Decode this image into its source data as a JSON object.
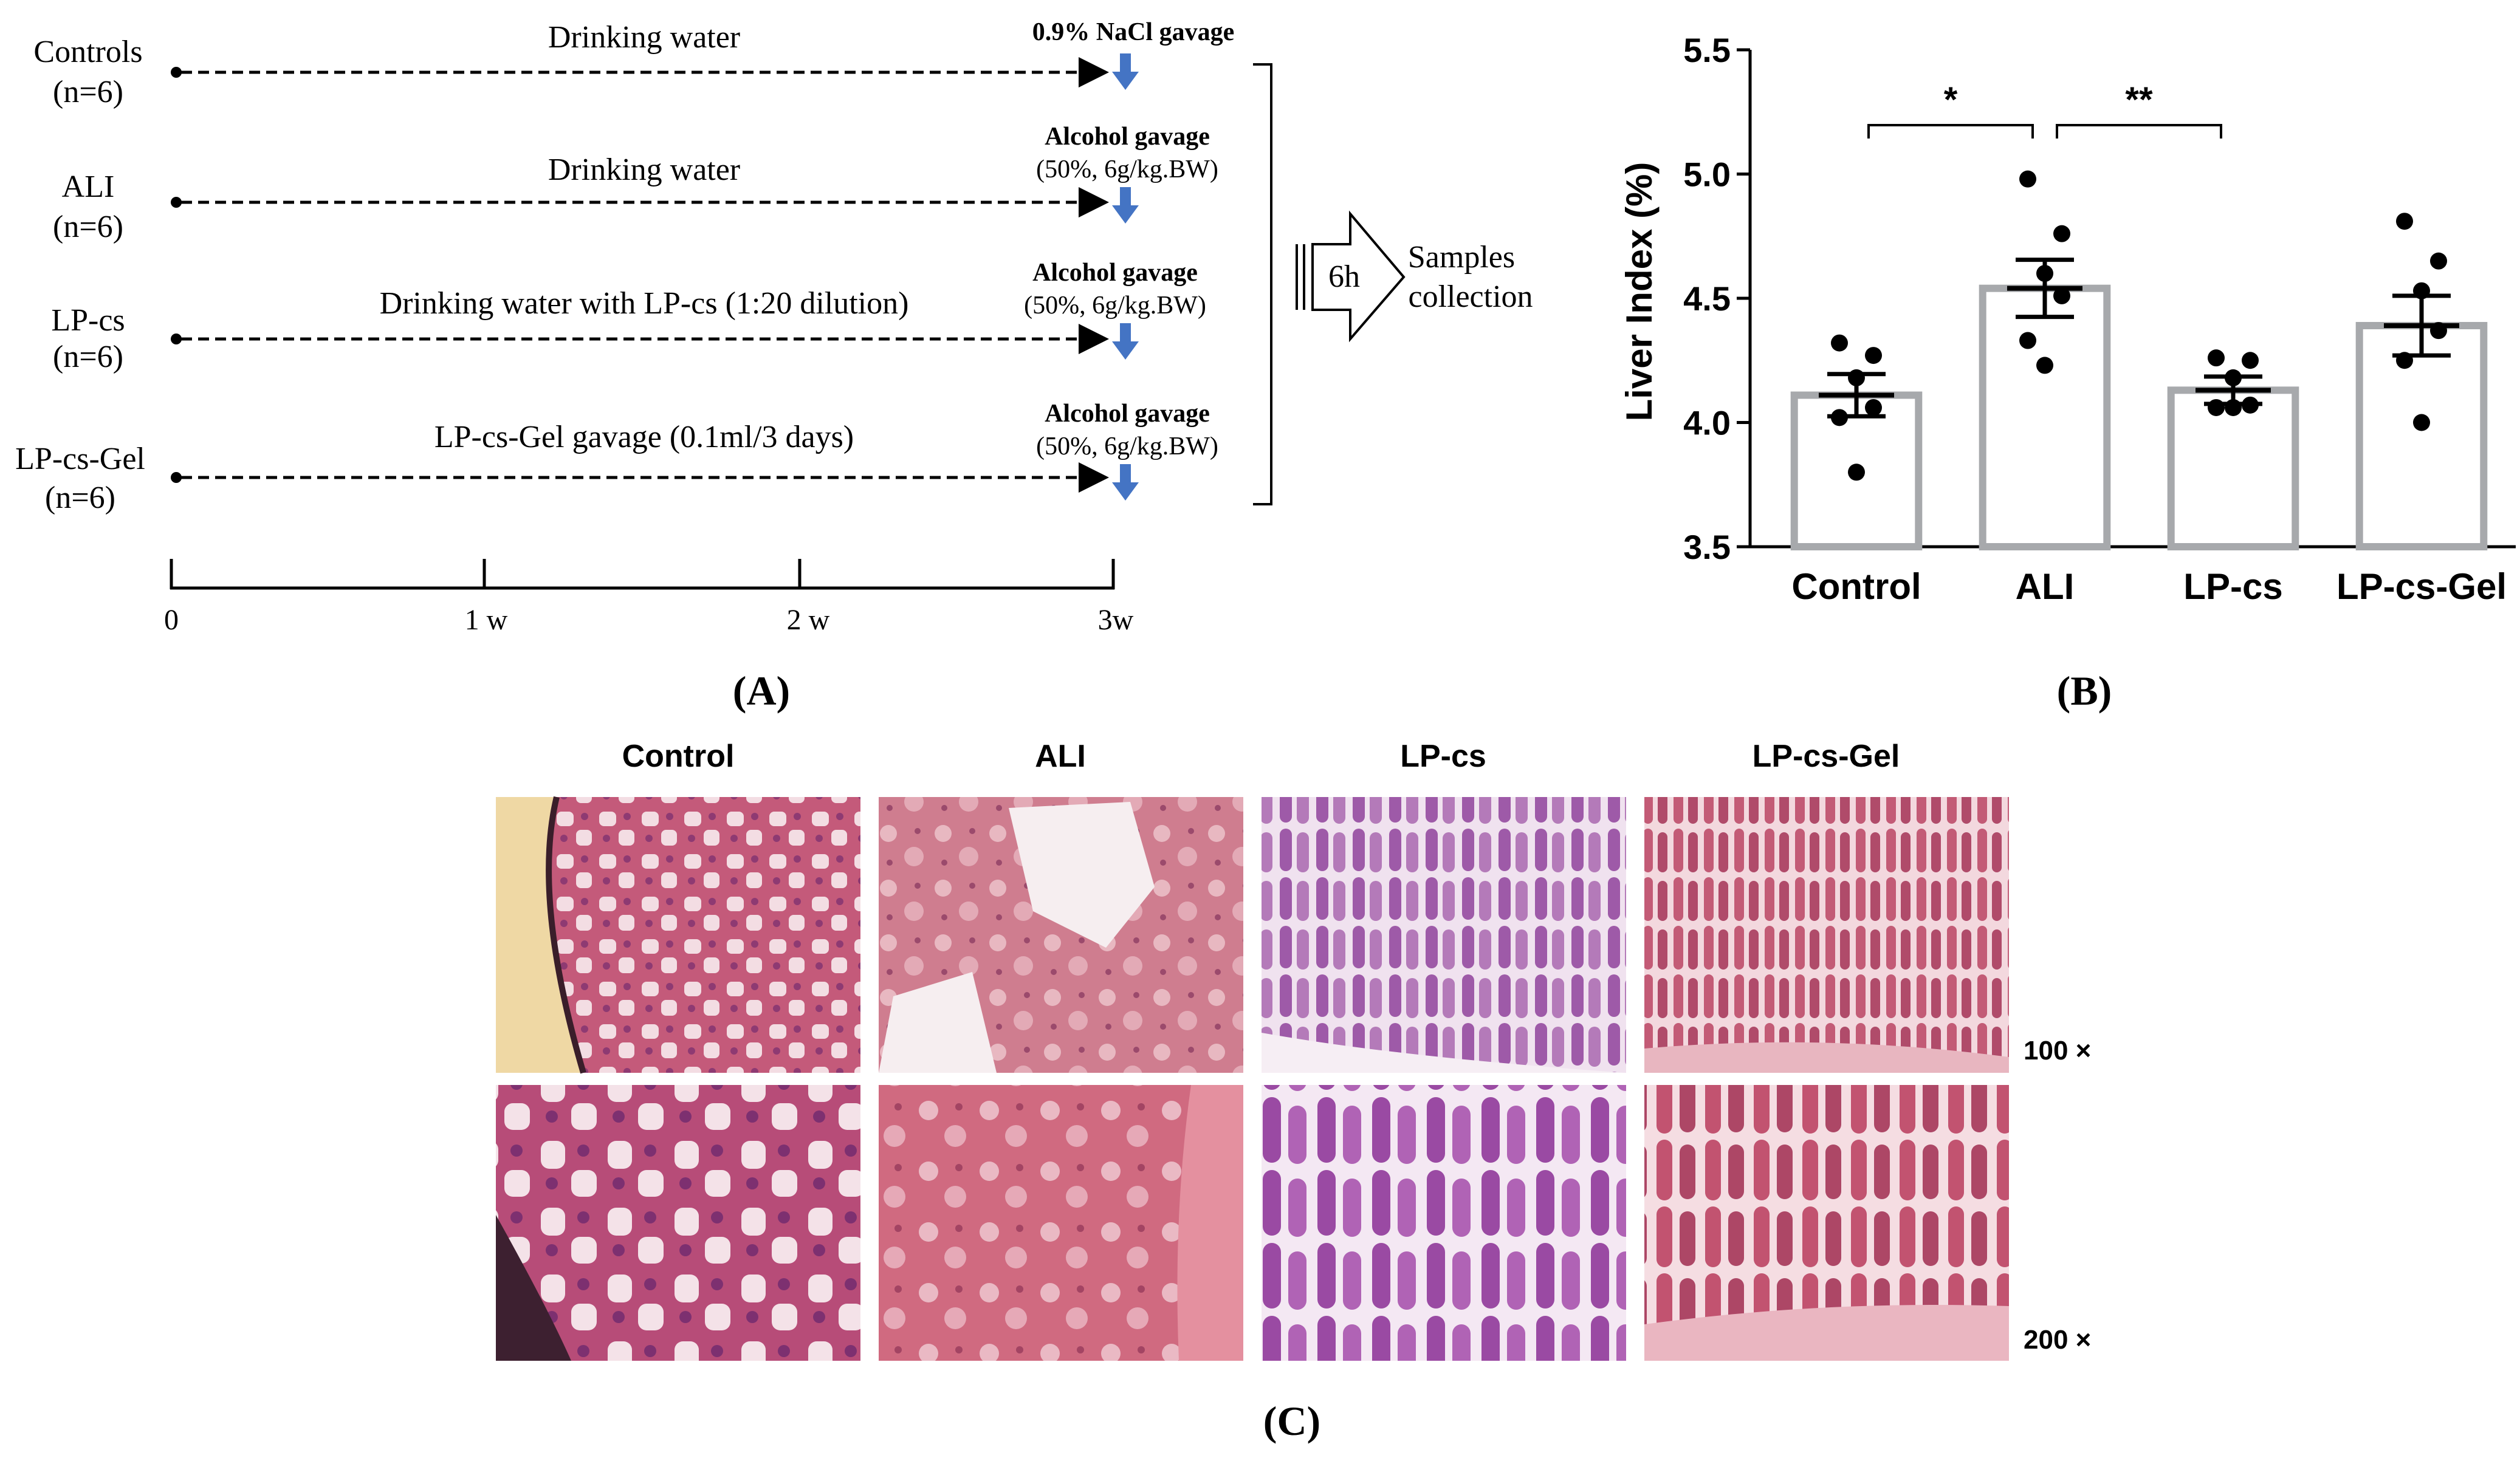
{
  "panel_a": {
    "groups": [
      {
        "name": "Controls",
        "n": "(n=6)",
        "treatment": "Drinking water",
        "challenge_title": "0.9% NaCl gavage",
        "challenge_sub": ""
      },
      {
        "name": "ALI",
        "n": "(n=6)",
        "treatment": "Drinking water",
        "challenge_title": "Alcohol gavage",
        "challenge_sub": "(50%, 6g/kg.BW)"
      },
      {
        "name": "LP-cs",
        "n": "(n=6)",
        "treatment": "Drinking water with LP-cs (1:20 dilution)",
        "challenge_title": "Alcohol gavage",
        "challenge_sub": "(50%, 6g/kg.BW)"
      },
      {
        "name": "LP-cs-Gel",
        "n": "(n=6)",
        "treatment": "LP-cs-Gel gavage (0.1ml/3 days)",
        "challenge_title": "Alcohol gavage",
        "challenge_sub": "(50%, 6g/kg.BW)"
      }
    ],
    "timeline_ticks": [
      "0",
      "1 w",
      "2 w",
      "3w"
    ],
    "arrow_label": "6h",
    "result_line1": "Samples",
    "result_line2": "collection",
    "label": "(A)"
  },
  "panel_b": {
    "label": "(B)",
    "chart_data": {
      "type": "bar",
      "categories": [
        "Control",
        "ALI",
        "LP-cs",
        "LP-cs-Gel"
      ],
      "values": [
        4.11,
        4.54,
        4.13,
        4.39
      ],
      "sem": [
        0.085,
        0.115,
        0.055,
        0.12
      ],
      "points": [
        [
          4.32,
          4.27,
          4.18,
          4.06,
          4.02,
          3.8
        ],
        [
          4.98,
          4.76,
          4.6,
          4.51,
          4.33,
          4.23
        ],
        [
          4.26,
          4.25,
          4.18,
          4.07,
          4.06,
          4.06
        ],
        [
          4.81,
          4.65,
          4.53,
          4.37,
          4.25,
          4.0
        ]
      ],
      "ylabel": "Liver Index (%)",
      "ylim": [
        3.5,
        5.5
      ],
      "yticks": [
        "3.5",
        "4.0",
        "4.5",
        "5.0",
        "5.5"
      ],
      "significance": [
        {
          "from": "Control",
          "to": "ALI",
          "label": "*"
        },
        {
          "from": "ALI",
          "to": "LP-cs",
          "label": "**"
        }
      ],
      "bar_color": "#a7a9ac",
      "point_color": "#000000"
    }
  },
  "panel_c": {
    "label": "(C)",
    "columns": [
      "Control",
      "ALI",
      "LP-cs",
      "LP-cs-Gel"
    ],
    "rows": [
      "100 ×",
      "200 ×"
    ]
  }
}
